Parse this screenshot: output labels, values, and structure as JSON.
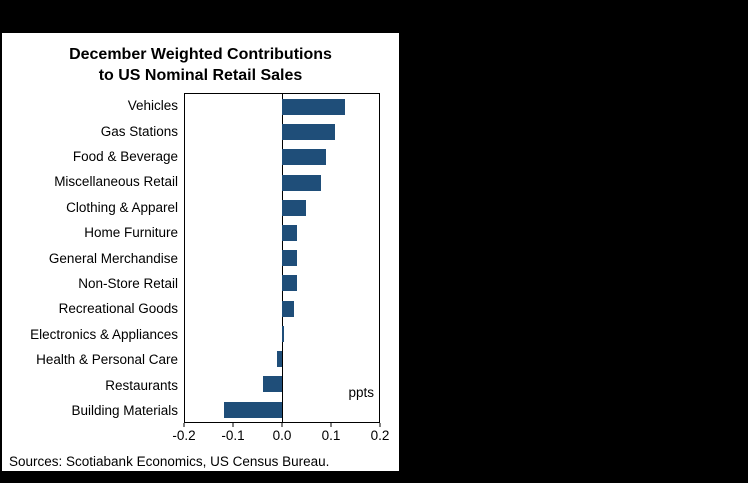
{
  "chart_data": {
    "type": "bar",
    "orientation": "horizontal",
    "title_line1": "December Weighted Contributions",
    "title_line2": "to US Nominal Retail Sales",
    "categories": [
      "Vehicles",
      "Gas Stations",
      "Food & Beverage",
      "Miscellaneous Retail",
      "Clothing & Apparel",
      "Home Furniture",
      "General Merchandise",
      "Non-Store Retail",
      "Recreational Goods",
      "Electronics & Appliances",
      "Health & Personal Care",
      "Restaurants",
      "Building Materials"
    ],
    "values": [
      0.13,
      0.11,
      0.09,
      0.08,
      0.05,
      0.03,
      0.03,
      0.03,
      0.025,
      0.005,
      -0.01,
      -0.04,
      -0.12
    ],
    "xlabel": "",
    "ylabel": "",
    "axis_unit_label": "ppts",
    "xlim": [
      -0.2,
      0.2
    ],
    "x_ticks": [
      "-0.2",
      "-0.1",
      "0.0",
      "0.1",
      "0.2"
    ],
    "grid": false,
    "legend": "none",
    "bar_color": "#1f4e79",
    "plot_background": "#ffffff",
    "page_background": "#000000"
  },
  "footer": {
    "source": "Sources: Scotiabank Economics, US Census Bureau."
  }
}
